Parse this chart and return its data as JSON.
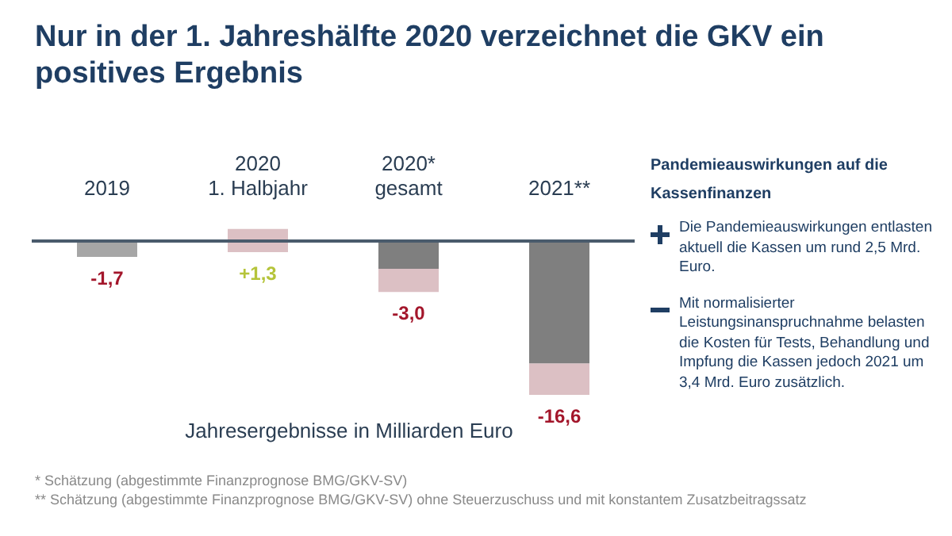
{
  "chart_data": {
    "type": "bar",
    "title": "Nur in der 1. Jahreshälfte 2020 verzeichnet die GKV ein positives Ergebnis",
    "xlabel": "Jahresergebnisse in Milliarden Euro",
    "categories": [
      "2019",
      "2020\n1. Halbjahr",
      "2020*\ngesamt",
      "2021**"
    ],
    "series": [
      {
        "colors": [
          "#a6a6a6",
          "#dcc0c4",
          "#7f7f7f",
          "#7f7f7f"
        ],
        "values": [
          -1.7,
          -1.2,
          -3.0,
          -13.2
        ],
        "value_labels": [
          "-1,7",
          null,
          "-3,0",
          null
        ]
      },
      {
        "color": "#dcc0c4",
        "values": [
          null,
          1.3,
          -2.5,
          -3.4
        ],
        "value_labels": [
          null,
          "+1,3",
          null,
          null
        ]
      }
    ],
    "stacked": true,
    "totals": [
      null,
      null,
      null,
      "-16,6"
    ],
    "tick_labels": "x",
    "grid": false,
    "legend": false,
    "annotations": [
      "Pandemieauswirkungen auf die Kassenfinanzen",
      "Die Pandemieauswirkungen entlasten aktuell die Kassen um rund 2,5 Mrd. Euro.",
      "Mit normalisierter Leistungsinanspruchnahme belasten die Kosten für Tests, Behandlung und Impfung die Kassen jedoch 2021 um 3,4 Mrd. Euro zusätzlich.",
      "* Schätzung (abgestimmte Finanzprognose BMG/GKV-SV)",
      "** Schätzung (abgestimmte Finanzprognose BMG/GKV-SV) ohne Steuerzuschuss und mit konstantem Zusatzbeitragssatz"
    ]
  }
}
